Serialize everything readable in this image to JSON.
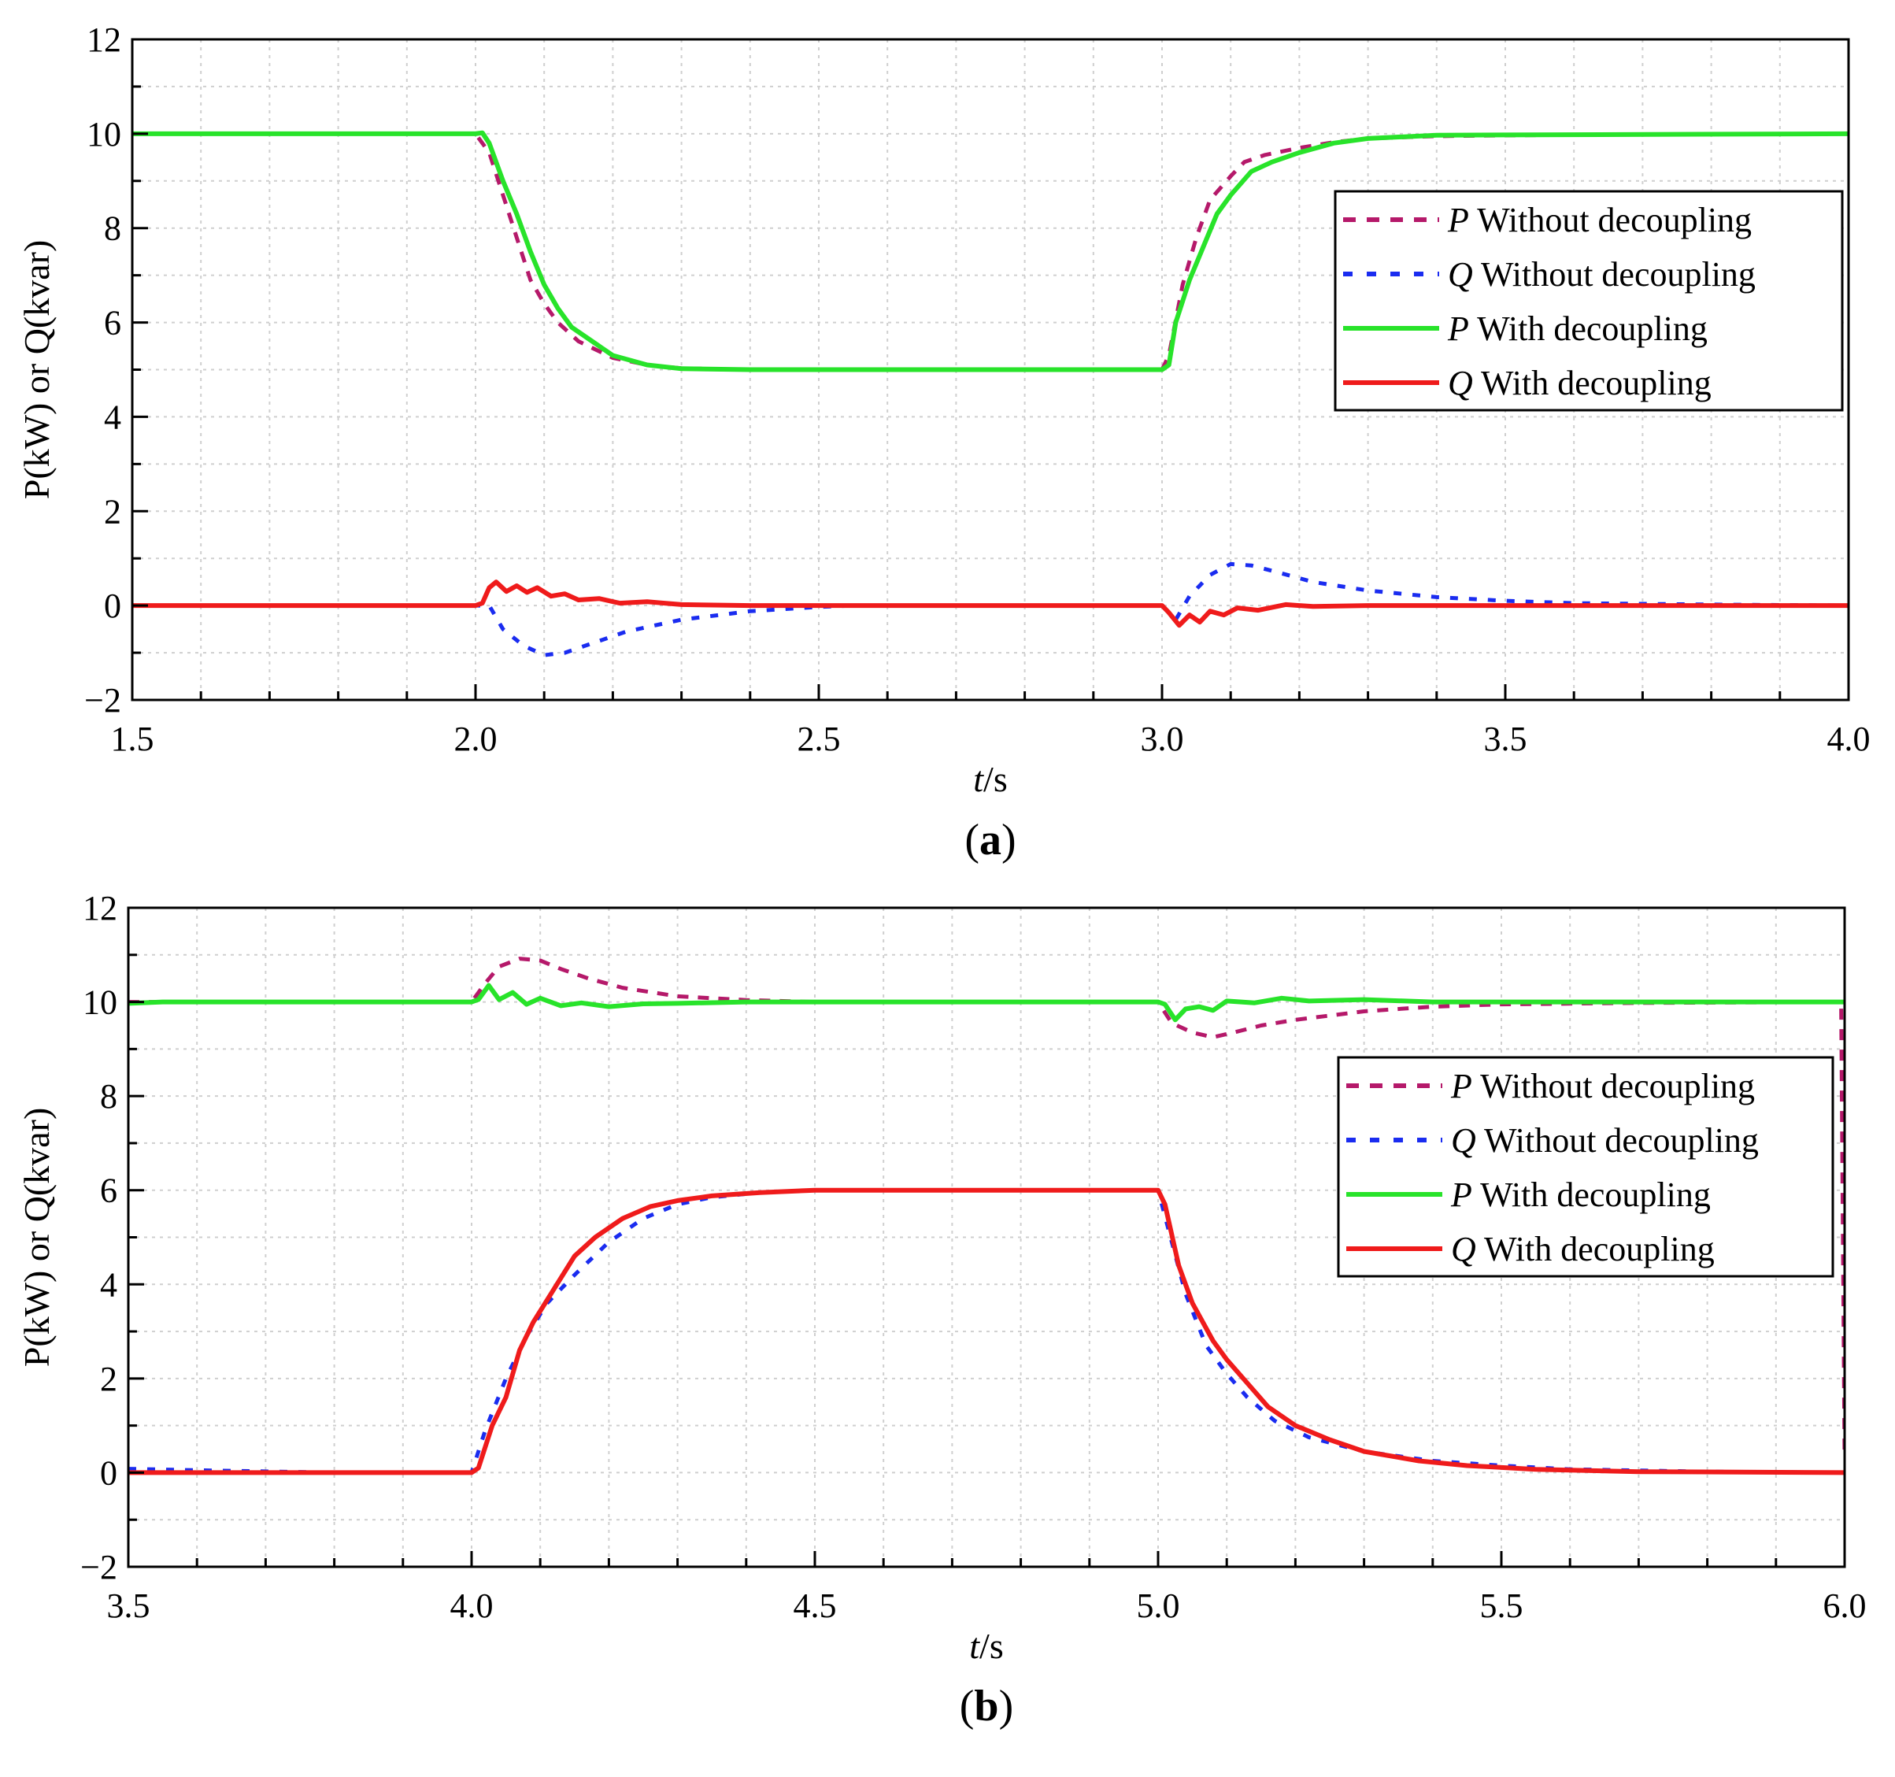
{
  "chart_data": [
    {
      "type": "line",
      "panel_label": "a",
      "ylabel": "P(kW) or Q(kvar)",
      "xlabel_italic": "t",
      "xlabel_unit": "/s",
      "xlim": [
        1.5,
        4.0
      ],
      "ylim": [
        -2,
        12
      ],
      "xticks": [
        1.5,
        2.0,
        2.5,
        3.0,
        3.5,
        4.0
      ],
      "xtick_labels": [
        "1.5",
        "2.0",
        "2.5",
        "3.0",
        "3.5",
        "4.0"
      ],
      "yticks": [
        -2,
        0,
        2,
        4,
        6,
        8,
        10,
        12
      ],
      "ytick_labels": [
        "−2",
        "0",
        "2",
        "4",
        "6",
        "8",
        "10",
        "12"
      ],
      "grid": true,
      "legend_position": "top-right",
      "series": [
        {
          "name_var": "P",
          "name_text": " Without decoupling",
          "style": "dashed",
          "color": "#b5196a",
          "points": [
            [
              1.5,
              10
            ],
            [
              2.0,
              10
            ],
            [
              2.02,
              9.6
            ],
            [
              2.04,
              8.7
            ],
            [
              2.06,
              7.8
            ],
            [
              2.08,
              6.9
            ],
            [
              2.1,
              6.4
            ],
            [
              2.12,
              6.0
            ],
            [
              2.15,
              5.6
            ],
            [
              2.2,
              5.25
            ],
            [
              2.25,
              5.1
            ],
            [
              2.3,
              5.03
            ],
            [
              2.4,
              5.0
            ],
            [
              3.0,
              5.0
            ],
            [
              3.01,
              5.3
            ],
            [
              3.03,
              6.8
            ],
            [
              3.05,
              7.8
            ],
            [
              3.07,
              8.6
            ],
            [
              3.1,
              9.1
            ],
            [
              3.12,
              9.4
            ],
            [
              3.15,
              9.55
            ],
            [
              3.2,
              9.7
            ],
            [
              3.25,
              9.82
            ],
            [
              3.3,
              9.9
            ],
            [
              3.4,
              9.95
            ],
            [
              3.6,
              9.98
            ],
            [
              4.0,
              10
            ]
          ]
        },
        {
          "name_var": "Q",
          "name_text": " Without decoupling",
          "style": "dotted",
          "color": "#1a2cf0",
          "points": [
            [
              1.5,
              0
            ],
            [
              2.0,
              0
            ],
            [
              2.02,
              0
            ],
            [
              2.04,
              -0.5
            ],
            [
              2.07,
              -0.85
            ],
            [
              2.1,
              -1.05
            ],
            [
              2.13,
              -1.0
            ],
            [
              2.17,
              -0.8
            ],
            [
              2.22,
              -0.55
            ],
            [
              2.3,
              -0.3
            ],
            [
              2.4,
              -0.12
            ],
            [
              2.5,
              -0.03
            ],
            [
              2.55,
              0
            ],
            [
              3.0,
              0
            ],
            [
              3.02,
              -0.3
            ],
            [
              3.04,
              0.2
            ],
            [
              3.07,
              0.65
            ],
            [
              3.1,
              0.88
            ],
            [
              3.13,
              0.85
            ],
            [
              3.17,
              0.7
            ],
            [
              3.22,
              0.5
            ],
            [
              3.3,
              0.32
            ],
            [
              3.4,
              0.18
            ],
            [
              3.5,
              0.1
            ],
            [
              3.6,
              0.05
            ],
            [
              3.8,
              0.02
            ],
            [
              4.0,
              0
            ]
          ]
        },
        {
          "name_var": "P",
          "name_text": " With decoupling",
          "style": "solid",
          "color": "#28e32a",
          "points": [
            [
              1.5,
              10
            ],
            [
              2.0,
              10
            ],
            [
              2.01,
              10.02
            ],
            [
              2.02,
              9.8
            ],
            [
              2.04,
              9.0
            ],
            [
              2.06,
              8.3
            ],
            [
              2.08,
              7.5
            ],
            [
              2.1,
              6.8
            ],
            [
              2.12,
              6.3
            ],
            [
              2.14,
              5.9
            ],
            [
              2.17,
              5.6
            ],
            [
              2.2,
              5.3
            ],
            [
              2.25,
              5.1
            ],
            [
              2.3,
              5.02
            ],
            [
              2.4,
              5.0
            ],
            [
              3.0,
              5.0
            ],
            [
              3.01,
              5.1
            ],
            [
              3.02,
              6.0
            ],
            [
              3.04,
              6.9
            ],
            [
              3.06,
              7.6
            ],
            [
              3.08,
              8.3
            ],
            [
              3.1,
              8.7
            ],
            [
              3.13,
              9.2
            ],
            [
              3.16,
              9.4
            ],
            [
              3.2,
              9.6
            ],
            [
              3.25,
              9.8
            ],
            [
              3.3,
              9.9
            ],
            [
              3.4,
              9.97
            ],
            [
              4.0,
              10
            ]
          ]
        },
        {
          "name_var": "Q",
          "name_text": " With decoupling",
          "style": "solid",
          "color": "#ef1b1b",
          "points": [
            [
              1.5,
              0
            ],
            [
              2.0,
              0
            ],
            [
              2.01,
              0.05
            ],
            [
              2.02,
              0.38
            ],
            [
              2.03,
              0.5
            ],
            [
              2.045,
              0.3
            ],
            [
              2.06,
              0.42
            ],
            [
              2.075,
              0.28
            ],
            [
              2.09,
              0.38
            ],
            [
              2.11,
              0.2
            ],
            [
              2.13,
              0.25
            ],
            [
              2.15,
              0.12
            ],
            [
              2.18,
              0.15
            ],
            [
              2.21,
              0.05
            ],
            [
              2.25,
              0.08
            ],
            [
              2.3,
              0.02
            ],
            [
              2.4,
              0.0
            ],
            [
              3.0,
              0
            ],
            [
              3.01,
              -0.15
            ],
            [
              3.025,
              -0.42
            ],
            [
              3.04,
              -0.2
            ],
            [
              3.055,
              -0.35
            ],
            [
              3.07,
              -0.12
            ],
            [
              3.09,
              -0.2
            ],
            [
              3.11,
              -0.05
            ],
            [
              3.14,
              -0.1
            ],
            [
              3.18,
              0.02
            ],
            [
              3.22,
              -0.02
            ],
            [
              3.3,
              0.0
            ],
            [
              4.0,
              0
            ]
          ]
        }
      ]
    },
    {
      "type": "line",
      "panel_label": "b",
      "ylabel": "P(kW) or Q(kvar)",
      "xlabel_italic": "t",
      "xlabel_unit": "/s",
      "xlim": [
        3.5,
        6.0
      ],
      "ylim": [
        -2,
        12
      ],
      "xticks": [
        3.5,
        4.0,
        4.5,
        5.0,
        5.5,
        6.0
      ],
      "xtick_labels": [
        "3.5",
        "4.0",
        "4.5",
        "5.0",
        "5.5",
        "6.0"
      ],
      "yticks": [
        -2,
        0,
        2,
        4,
        6,
        8,
        10,
        12
      ],
      "ytick_labels": [
        "−2",
        "0",
        "2",
        "4",
        "6",
        "8",
        "10",
        "12"
      ],
      "grid": true,
      "legend_position": "right",
      "series": [
        {
          "name_var": "P",
          "name_text": " Without decoupling",
          "style": "dashed",
          "color": "#b5196a",
          "points": [
            [
              3.5,
              10
            ],
            [
              4.0,
              10
            ],
            [
              4.02,
              10.4
            ],
            [
              4.04,
              10.75
            ],
            [
              4.07,
              10.92
            ],
            [
              4.1,
              10.88
            ],
            [
              4.13,
              10.7
            ],
            [
              4.17,
              10.5
            ],
            [
              4.22,
              10.3
            ],
            [
              4.3,
              10.12
            ],
            [
              4.4,
              10.04
            ],
            [
              4.5,
              10.0
            ],
            [
              5.0,
              10.0
            ],
            [
              5.02,
              9.55
            ],
            [
              5.05,
              9.35
            ],
            [
              5.08,
              9.25
            ],
            [
              5.11,
              9.35
            ],
            [
              5.15,
              9.5
            ],
            [
              5.2,
              9.62
            ],
            [
              5.3,
              9.8
            ],
            [
              5.4,
              9.9
            ],
            [
              5.5,
              9.95
            ],
            [
              5.7,
              9.98
            ],
            [
              5.995,
              10.0
            ],
            [
              6.0,
              0.3
            ]
          ]
        },
        {
          "name_var": "Q",
          "name_text": " Without decoupling",
          "style": "dotted",
          "color": "#1a2cf0",
          "points": [
            [
              3.5,
              0.08
            ],
            [
              3.6,
              0.05
            ],
            [
              3.8,
              0.0
            ],
            [
              4.0,
              0.0
            ],
            [
              4.02,
              0.9
            ],
            [
              4.05,
              2.0
            ],
            [
              4.08,
              2.9
            ],
            [
              4.11,
              3.6
            ],
            [
              4.15,
              4.2
            ],
            [
              4.2,
              4.9
            ],
            [
              4.25,
              5.4
            ],
            [
              4.3,
              5.7
            ],
            [
              4.35,
              5.85
            ],
            [
              4.42,
              5.95
            ],
            [
              4.5,
              6.0
            ],
            [
              5.0,
              6.0
            ],
            [
              5.02,
              4.9
            ],
            [
              5.04,
              3.8
            ],
            [
              5.07,
              2.7
            ],
            [
              5.1,
              2.1
            ],
            [
              5.13,
              1.6
            ],
            [
              5.17,
              1.1
            ],
            [
              5.22,
              0.75
            ],
            [
              5.3,
              0.45
            ],
            [
              5.4,
              0.25
            ],
            [
              5.5,
              0.15
            ],
            [
              5.6,
              0.07
            ],
            [
              5.8,
              0.02
            ],
            [
              6.0,
              0.0
            ]
          ]
        },
        {
          "name_var": "P",
          "name_text": " With decoupling",
          "style": "solid",
          "color": "#28e32a",
          "points": [
            [
              3.5,
              9.97
            ],
            [
              3.55,
              10.0
            ],
            [
              4.0,
              10.0
            ],
            [
              4.01,
              10.05
            ],
            [
              4.025,
              10.35
            ],
            [
              4.04,
              10.05
            ],
            [
              4.06,
              10.2
            ],
            [
              4.08,
              9.95
            ],
            [
              4.1,
              10.08
            ],
            [
              4.13,
              9.92
            ],
            [
              4.16,
              9.98
            ],
            [
              4.2,
              9.9
            ],
            [
              4.25,
              9.96
            ],
            [
              4.3,
              9.97
            ],
            [
              4.4,
              10.0
            ],
            [
              5.0,
              10.0
            ],
            [
              5.01,
              9.95
            ],
            [
              5.025,
              9.62
            ],
            [
              5.04,
              9.85
            ],
            [
              5.06,
              9.9
            ],
            [
              5.08,
              9.82
            ],
            [
              5.1,
              10.02
            ],
            [
              5.14,
              9.98
            ],
            [
              5.18,
              10.08
            ],
            [
              5.22,
              10.02
            ],
            [
              5.3,
              10.05
            ],
            [
              5.4,
              10.0
            ],
            [
              6.0,
              10.0
            ]
          ]
        },
        {
          "name_var": "Q",
          "name_text": " With decoupling",
          "style": "solid",
          "color": "#ef1b1b",
          "points": [
            [
              3.5,
              0
            ],
            [
              4.0,
              0
            ],
            [
              4.01,
              0.1
            ],
            [
              4.03,
              1.0
            ],
            [
              4.05,
              1.6
            ],
            [
              4.07,
              2.6
            ],
            [
              4.09,
              3.2
            ],
            [
              4.12,
              3.9
            ],
            [
              4.15,
              4.6
            ],
            [
              4.18,
              5.0
            ],
            [
              4.22,
              5.4
            ],
            [
              4.26,
              5.65
            ],
            [
              4.3,
              5.78
            ],
            [
              4.35,
              5.88
            ],
            [
              4.42,
              5.95
            ],
            [
              4.5,
              6.0
            ],
            [
              5.0,
              6.0
            ],
            [
              5.01,
              5.7
            ],
            [
              5.03,
              4.4
            ],
            [
              5.05,
              3.6
            ],
            [
              5.08,
              2.8
            ],
            [
              5.1,
              2.4
            ],
            [
              5.13,
              1.9
            ],
            [
              5.16,
              1.4
            ],
            [
              5.2,
              1.0
            ],
            [
              5.25,
              0.7
            ],
            [
              5.3,
              0.45
            ],
            [
              5.38,
              0.25
            ],
            [
              5.45,
              0.15
            ],
            [
              5.55,
              0.07
            ],
            [
              5.7,
              0.02
            ],
            [
              6.0,
              0.0
            ]
          ]
        }
      ]
    }
  ]
}
